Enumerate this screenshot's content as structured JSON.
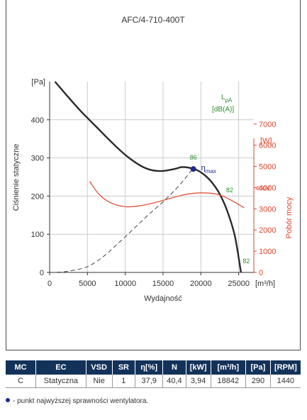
{
  "chart_data": {
    "type": "line",
    "title": "AFC/4-710-400T",
    "xlabel": "Wydajność",
    "xunit": "[m³/h]",
    "xlim": [
      0,
      27000
    ],
    "xticks": [
      0,
      5000,
      10000,
      15000,
      20000,
      25000
    ],
    "ylabel_left": "Ciśnienie statyczne",
    "yunit_left": "[Pa]",
    "ylim_left": [
      0,
      500
    ],
    "yticks_left": [
      0,
      100,
      200,
      300,
      400
    ],
    "ylabel_right": "Pobór mocy",
    "yunit_right": "[W]",
    "ylim_right": [
      0,
      9000
    ],
    "yticks_right": [
      0,
      1000,
      2000,
      3000,
      4000,
      5000,
      6000,
      7000
    ],
    "grid": true,
    "sound_label": "LpA",
    "sound_unit": "[dB(A)]",
    "series": [
      {
        "axis": "left",
        "color": "#2a2a2a",
        "style": "solid",
        "points": [
          [
            700,
            500
          ],
          [
            2000,
            470
          ],
          [
            4000,
            425
          ],
          [
            6000,
            385
          ],
          [
            8000,
            345
          ],
          [
            10000,
            308
          ],
          [
            12000,
            280
          ],
          [
            13500,
            268
          ],
          [
            15000,
            266
          ],
          [
            16500,
            271
          ],
          [
            17500,
            276
          ],
          [
            18500,
            274
          ],
          [
            19500,
            268
          ],
          [
            20500,
            255
          ],
          [
            21500,
            235
          ],
          [
            22500,
            205
          ],
          [
            23500,
            160
          ],
          [
            24500,
            95
          ],
          [
            25300,
            0
          ]
        ]
      },
      {
        "name": "400V",
        "axis": "right",
        "color": "#e0452a",
        "style": "solid",
        "points": [
          [
            5300,
            4300
          ],
          [
            6500,
            3700
          ],
          [
            8000,
            3300
          ],
          [
            10000,
            3100
          ],
          [
            12000,
            3150
          ],
          [
            14000,
            3300
          ],
          [
            16000,
            3500
          ],
          [
            18000,
            3680
          ],
          [
            20000,
            3750
          ],
          [
            22000,
            3700
          ],
          [
            23500,
            3500
          ],
          [
            25000,
            3200
          ],
          [
            25700,
            3050
          ]
        ]
      },
      {
        "axis": "left",
        "color": "#444444",
        "style": "dashed",
        "points": [
          [
            0,
            0
          ],
          [
            1500,
            1
          ],
          [
            3000,
            5
          ],
          [
            5000,
            15
          ],
          [
            7000,
            40
          ],
          [
            9000,
            75
          ],
          [
            11000,
            112
          ],
          [
            13000,
            150
          ],
          [
            15000,
            185
          ],
          [
            17000,
            225
          ],
          [
            19000,
            273
          ]
        ]
      }
    ],
    "efficiency_labels": [
      {
        "text": "86",
        "x": 19000,
        "y": 296
      },
      {
        "text": "82",
        "x": 23800,
        "y": 210
      },
      {
        "text": "82",
        "x": 26000,
        "y": 24
      }
    ],
    "max_point": {
      "x": 19000,
      "y": 271,
      "label": "η",
      "label_sub": "max"
    }
  },
  "table": {
    "headers": [
      "MC",
      "EC",
      "VSD",
      "SR",
      "η[%]",
      "N",
      "[kW]",
      "[m³/h]",
      "[Pa]",
      "[RPM]"
    ],
    "row": [
      "C",
      "Statyczna",
      "Nie",
      "1",
      "37,9",
      "40,4",
      "3,94",
      "18842",
      "290",
      "1440"
    ]
  },
  "footnote": "- punkt najwyższej sprawności wentylatora.",
  "colors": {
    "curve": "#2a2a2a",
    "power": "#e0452a",
    "efficiency": "#2e8b2e",
    "max_point": "#1f2a8c",
    "table_header": "#13325a"
  }
}
